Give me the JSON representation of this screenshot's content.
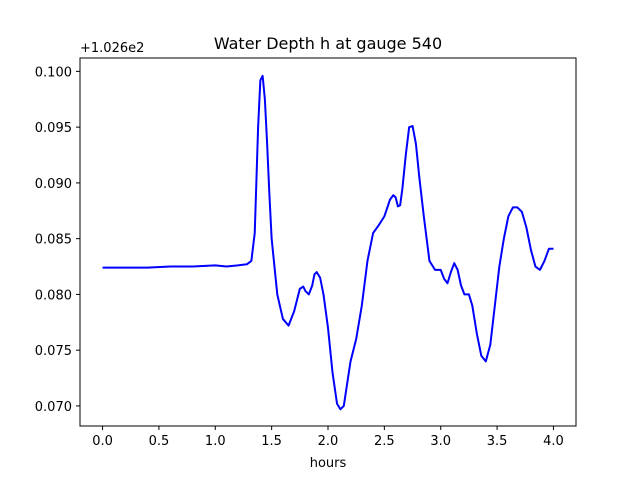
{
  "chart_data": {
    "type": "line",
    "title": "Water Depth h at gauge 540",
    "xlabel": "hours",
    "ylabel": "",
    "offset_text": "+1.026e2",
    "xlim": [
      -0.2,
      4.2
    ],
    "ylim": [
      0.0682,
      0.1012
    ],
    "x_ticks": [
      0.0,
      0.5,
      1.0,
      1.5,
      2.0,
      2.5,
      3.0,
      3.5,
      4.0
    ],
    "x_tick_labels": [
      "0.0",
      "0.5",
      "1.0",
      "1.5",
      "2.0",
      "2.5",
      "3.0",
      "3.5",
      "4.0"
    ],
    "y_ticks": [
      0.07,
      0.075,
      0.08,
      0.085,
      0.09,
      0.095,
      0.1
    ],
    "y_tick_labels": [
      "0.070",
      "0.075",
      "0.080",
      "0.085",
      "0.090",
      "0.095",
      "0.100"
    ],
    "grid": false,
    "series": [
      {
        "color": "#0000ff",
        "x": [
          0.0,
          0.2,
          0.4,
          0.6,
          0.8,
          1.0,
          1.1,
          1.2,
          1.28,
          1.32,
          1.35,
          1.38,
          1.4,
          1.42,
          1.44,
          1.46,
          1.48,
          1.5,
          1.55,
          1.6,
          1.65,
          1.7,
          1.75,
          1.78,
          1.8,
          1.83,
          1.86,
          1.88,
          1.9,
          1.93,
          1.96,
          2.0,
          2.04,
          2.08,
          2.11,
          2.14,
          2.17,
          2.2,
          2.25,
          2.3,
          2.35,
          2.4,
          2.45,
          2.5,
          2.55,
          2.58,
          2.6,
          2.62,
          2.64,
          2.66,
          2.69,
          2.72,
          2.75,
          2.78,
          2.81,
          2.85,
          2.9,
          2.95,
          3.0,
          3.03,
          3.06,
          3.09,
          3.12,
          3.15,
          3.18,
          3.21,
          3.25,
          3.28,
          3.32,
          3.36,
          3.4,
          3.44,
          3.48,
          3.52,
          3.56,
          3.6,
          3.64,
          3.68,
          3.72,
          3.76,
          3.8,
          3.84,
          3.88,
          3.92,
          3.96,
          4.0
        ],
        "y": [
          0.0824,
          0.0824,
          0.0824,
          0.0825,
          0.0825,
          0.0826,
          0.0825,
          0.0826,
          0.0827,
          0.083,
          0.0855,
          0.095,
          0.0992,
          0.0996,
          0.0975,
          0.0935,
          0.089,
          0.085,
          0.08,
          0.0778,
          0.0772,
          0.0785,
          0.0805,
          0.0807,
          0.0803,
          0.08,
          0.0808,
          0.0818,
          0.082,
          0.0815,
          0.08,
          0.077,
          0.073,
          0.0702,
          0.0697,
          0.07,
          0.072,
          0.074,
          0.076,
          0.079,
          0.083,
          0.0855,
          0.0862,
          0.087,
          0.0885,
          0.0889,
          0.0887,
          0.0879,
          0.088,
          0.0895,
          0.0925,
          0.095,
          0.0951,
          0.0935,
          0.0905,
          0.087,
          0.083,
          0.0822,
          0.0822,
          0.0814,
          0.081,
          0.082,
          0.0828,
          0.0822,
          0.0808,
          0.08,
          0.08,
          0.079,
          0.0765,
          0.0745,
          0.074,
          0.0755,
          0.079,
          0.0825,
          0.085,
          0.087,
          0.0878,
          0.0878,
          0.0874,
          0.086,
          0.084,
          0.0825,
          0.0822,
          0.083,
          0.0841,
          0.0841
        ]
      }
    ]
  }
}
